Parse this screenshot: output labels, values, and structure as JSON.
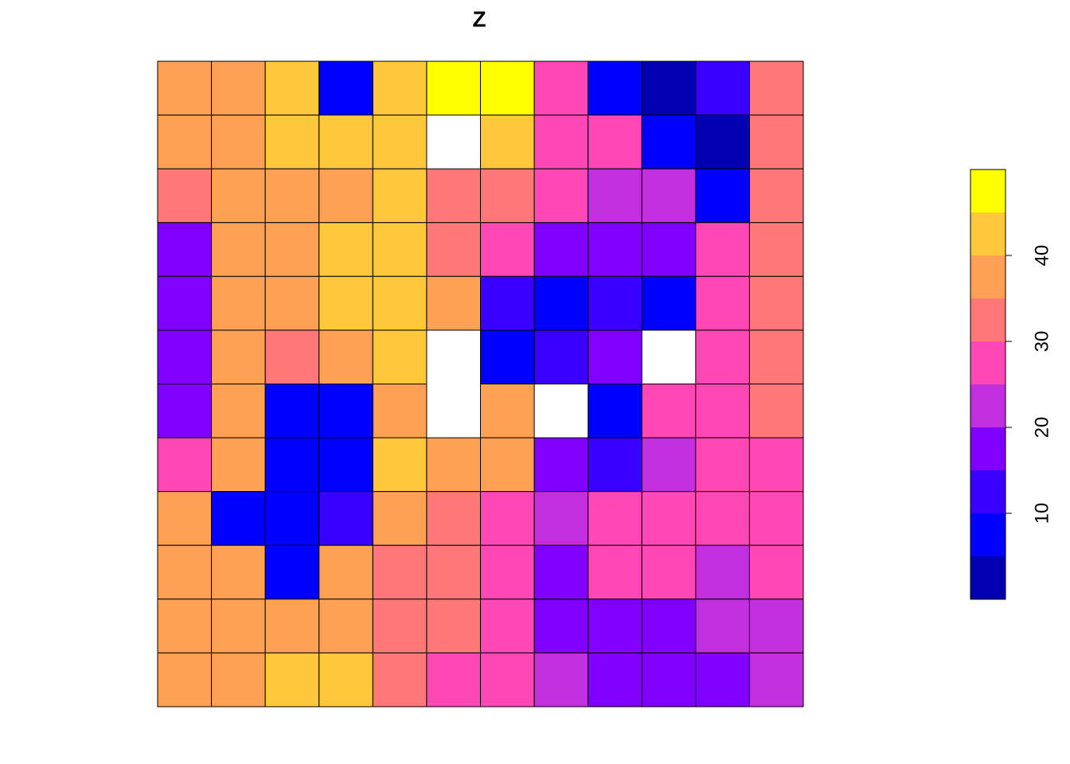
{
  "title": "Z",
  "map": {
    "values": [
      [
        38,
        40,
        42,
        8,
        42,
        47,
        46,
        30,
        6,
        4,
        12,
        33
      ],
      [
        37,
        40,
        42,
        41,
        42,
        null,
        44,
        30,
        27,
        6,
        5,
        33
      ],
      [
        33,
        40,
        40,
        40,
        44,
        34,
        32,
        26,
        24,
        22,
        10,
        32
      ],
      [
        18,
        38,
        38,
        42,
        43,
        34,
        26,
        16,
        17,
        17,
        28,
        32
      ],
      [
        17,
        36,
        38,
        42,
        44,
        38,
        12,
        10,
        14,
        8,
        26,
        31
      ],
      [
        17,
        37,
        34,
        40,
        43,
        null,
        10,
        14,
        20,
        null,
        30,
        32
      ],
      [
        18,
        38,
        8,
        8,
        38,
        null,
        38,
        null,
        10,
        26,
        28,
        31
      ],
      [
        30,
        37,
        8,
        9,
        42,
        40,
        38,
        16,
        14,
        24,
        28,
        28
      ],
      [
        36,
        10,
        8,
        12,
        38,
        32,
        30,
        22,
        28,
        30,
        30,
        29
      ],
      [
        38,
        36,
        9,
        38,
        34,
        32,
        30,
        18,
        28,
        26,
        24,
        26
      ],
      [
        40,
        36,
        36,
        40,
        34,
        32,
        28,
        16,
        18,
        20,
        22,
        24
      ],
      [
        38,
        38,
        42,
        42,
        34,
        30,
        26,
        24,
        18,
        18,
        20,
        22
      ]
    ]
  },
  "legend": {
    "lim": [
      0,
      50
    ],
    "breaks": [
      0,
      5,
      10,
      15,
      20,
      25,
      30,
      35,
      40,
      45,
      50
    ],
    "colors": [
      "#0000B0",
      "#0000FF",
      "#3A00FF",
      "#8000FF",
      "#C12FDF",
      "#FF47B6",
      "#FF7878",
      "#FFA154",
      "#FFC83A",
      "#FFFF00"
    ],
    "ticks": [
      10,
      20,
      30,
      40
    ]
  }
}
